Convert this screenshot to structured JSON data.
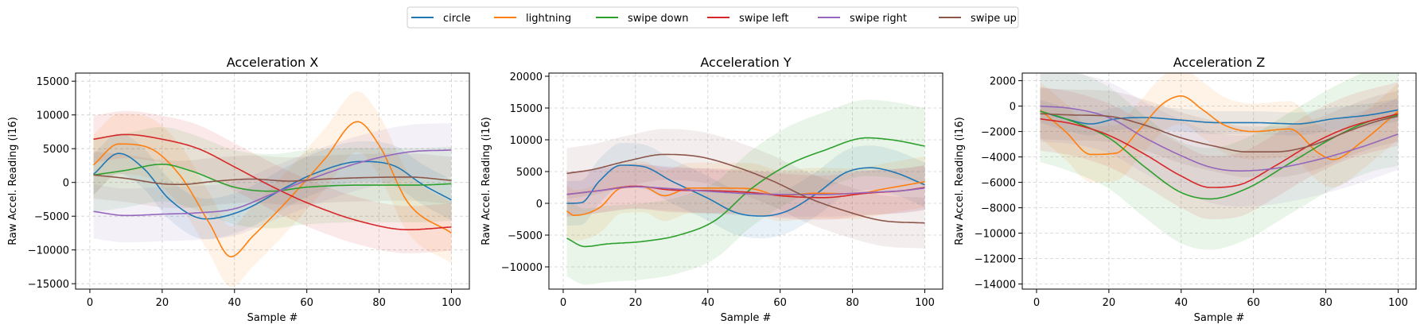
{
  "legend": [
    {
      "label": "circle",
      "color": "#1f77b4"
    },
    {
      "label": "lightning",
      "color": "#ff7f0e"
    },
    {
      "label": "swipe down",
      "color": "#2ca02c"
    },
    {
      "label": "swipe left",
      "color": "#d62728"
    },
    {
      "label": "swipe right",
      "color": "#9467bd"
    },
    {
      "label": "swipe up",
      "color": "#8c564b"
    }
  ],
  "chart_data": [
    {
      "type": "line",
      "title": "Acceleration X",
      "xlabel": "Sample #",
      "ylabel": "Raw Accel. Reading (i16)",
      "xlim": [
        -3.95,
        104.95
      ],
      "ylim": [
        -15800,
        16200
      ],
      "xticks": [
        0,
        20,
        40,
        60,
        80,
        100
      ],
      "yticks": [
        -15000,
        -10000,
        -5000,
        0,
        5000,
        10000,
        15000
      ],
      "grid": true,
      "series": [
        {
          "name": "circle",
          "band": 3000,
          "points": [
            [
              1,
              1200
            ],
            [
              8,
              4300
            ],
            [
              15,
              2000
            ],
            [
              22,
              -2500
            ],
            [
              32,
              -5400
            ],
            [
              42,
              -4200
            ],
            [
              55,
              -500
            ],
            [
              62,
              1300
            ],
            [
              75,
              3100
            ],
            [
              84,
              2500
            ],
            [
              92,
              -300
            ],
            [
              100,
              -2600
            ]
          ]
        },
        {
          "name": "lightning",
          "band": 4500,
          "points": [
            [
              1,
              2600
            ],
            [
              8,
              5700
            ],
            [
              16,
              5200
            ],
            [
              25,
              1000
            ],
            [
              33,
              -6000
            ],
            [
              39,
              -11000
            ],
            [
              45,
              -8000
            ],
            [
              55,
              -2500
            ],
            [
              65,
              3500
            ],
            [
              74,
              9000
            ],
            [
              80,
              5500
            ],
            [
              88,
              -3000
            ],
            [
              100,
              -7500
            ]
          ]
        },
        {
          "name": "swipe down",
          "band": 5500,
          "points": [
            [
              1,
              1100
            ],
            [
              10,
              1800
            ],
            [
              20,
              2700
            ],
            [
              28,
              1700
            ],
            [
              40,
              -700
            ],
            [
              50,
              -1300
            ],
            [
              60,
              -700
            ],
            [
              75,
              -400
            ],
            [
              90,
              -400
            ],
            [
              100,
              -200
            ]
          ]
        },
        {
          "name": "swipe left",
          "band": 3500,
          "points": [
            [
              1,
              6400
            ],
            [
              10,
              7100
            ],
            [
              20,
              6400
            ],
            [
              30,
              5000
            ],
            [
              40,
              2300
            ],
            [
              50,
              -500
            ],
            [
              60,
              -3000
            ],
            [
              75,
              -5800
            ],
            [
              88,
              -7000
            ],
            [
              100,
              -6600
            ]
          ]
        },
        {
          "name": "swipe right",
          "band": 4000,
          "points": [
            [
              1,
              -4300
            ],
            [
              10,
              -4900
            ],
            [
              20,
              -4700
            ],
            [
              30,
              -4500
            ],
            [
              40,
              -3900
            ],
            [
              50,
              -1800
            ],
            [
              60,
              300
            ],
            [
              75,
              3000
            ],
            [
              88,
              4500
            ],
            [
              100,
              4800
            ]
          ]
        },
        {
          "name": "swipe up",
          "band": 3500,
          "points": [
            [
              1,
              1100
            ],
            [
              10,
              600
            ],
            [
              20,
              -200
            ],
            [
              25,
              -300
            ],
            [
              35,
              200
            ],
            [
              45,
              500
            ],
            [
              55,
              200
            ],
            [
              65,
              500
            ],
            [
              75,
              700
            ],
            [
              88,
              800
            ],
            [
              100,
              300
            ]
          ]
        }
      ]
    },
    {
      "type": "line",
      "title": "Acceleration Y",
      "xlabel": "Sample #",
      "ylabel": "Raw Accel. Reading (i16)",
      "xlim": [
        -3.95,
        104.95
      ],
      "ylim": [
        -13500,
        20500
      ],
      "xticks": [
        0,
        20,
        40,
        60,
        80,
        100
      ],
      "yticks": [
        -10000,
        -5000,
        0,
        5000,
        10000,
        15000,
        20000
      ],
      "grid": true,
      "series": [
        {
          "name": "circle",
          "band": 3500,
          "points": [
            [
              1,
              0
            ],
            [
              5,
              100
            ],
            [
              10,
              3500
            ],
            [
              16,
              6000
            ],
            [
              22,
              5800
            ],
            [
              30,
              3500
            ],
            [
              40,
              800
            ],
            [
              48,
              -1500
            ],
            [
              55,
              -2000
            ],
            [
              62,
              -1200
            ],
            [
              70,
              1500
            ],
            [
              78,
              4800
            ],
            [
              85,
              5600
            ],
            [
              92,
              4800
            ],
            [
              100,
              2900
            ]
          ]
        },
        {
          "name": "lightning",
          "band": 4000,
          "points": [
            [
              1,
              -1200
            ],
            [
              3,
              -1900
            ],
            [
              10,
              -700
            ],
            [
              16,
              2400
            ],
            [
              22,
              2600
            ],
            [
              28,
              1200
            ],
            [
              35,
              2400
            ],
            [
              42,
              2400
            ],
            [
              52,
              2300
            ],
            [
              60,
              1200
            ],
            [
              70,
              1600
            ],
            [
              80,
              1500
            ],
            [
              90,
              2400
            ],
            [
              100,
              3400
            ]
          ]
        },
        {
          "name": "swipe down",
          "band": 6000,
          "points": [
            [
              1,
              -5500
            ],
            [
              6,
              -6800
            ],
            [
              12,
              -6400
            ],
            [
              22,
              -6000
            ],
            [
              32,
              -5000
            ],
            [
              42,
              -2700
            ],
            [
              52,
              2300
            ],
            [
              62,
              6000
            ],
            [
              72,
              8300
            ],
            [
              84,
              10300
            ],
            [
              92,
              9900
            ],
            [
              100,
              9000
            ]
          ]
        },
        {
          "name": "swipe left",
          "band": 3500,
          "points": [
            [
              1,
              1400
            ],
            [
              10,
              2000
            ],
            [
              20,
              2700
            ],
            [
              30,
              2100
            ],
            [
              40,
              2000
            ],
            [
              52,
              1700
            ],
            [
              62,
              1100
            ],
            [
              72,
              900
            ],
            [
              84,
              1600
            ],
            [
              94,
              2000
            ],
            [
              100,
              2500
            ]
          ]
        },
        {
          "name": "swipe right",
          "band": 3500,
          "points": [
            [
              1,
              1400
            ],
            [
              10,
              2000
            ],
            [
              20,
              2600
            ],
            [
              30,
              2300
            ],
            [
              40,
              1900
            ],
            [
              52,
              1500
            ],
            [
              62,
              1400
            ],
            [
              72,
              1400
            ],
            [
              84,
              1700
            ],
            [
              94,
              2000
            ],
            [
              100,
              2400
            ]
          ]
        },
        {
          "name": "swipe up",
          "band": 4000,
          "points": [
            [
              1,
              4700
            ],
            [
              8,
              5300
            ],
            [
              18,
              6700
            ],
            [
              28,
              7700
            ],
            [
              38,
              7300
            ],
            [
              48,
              5700
            ],
            [
              58,
              3500
            ],
            [
              68,
              800
            ],
            [
              78,
              -1200
            ],
            [
              88,
              -2700
            ],
            [
              100,
              -3100
            ]
          ]
        }
      ]
    },
    {
      "type": "line",
      "title": "Acceleration Z",
      "xlabel": "Sample #",
      "ylabel": "Raw Accel. Reading (i16)",
      "xlim": [
        -3.95,
        104.95
      ],
      "ylim": [
        -14400,
        2600
      ],
      "xticks": [
        0,
        20,
        40,
        60,
        80,
        100
      ],
      "yticks": [
        -14000,
        -12000,
        -10000,
        -8000,
        -6000,
        -4000,
        -2000,
        0,
        2000
      ],
      "grid": true,
      "series": [
        {
          "name": "circle",
          "band": 900,
          "points": [
            [
              1,
              -400
            ],
            [
              8,
              -1000
            ],
            [
              15,
              -1400
            ],
            [
              22,
              -1000
            ],
            [
              30,
              -900
            ],
            [
              40,
              -1100
            ],
            [
              50,
              -1300
            ],
            [
              60,
              -1300
            ],
            [
              72,
              -1400
            ],
            [
              82,
              -1000
            ],
            [
              92,
              -700
            ],
            [
              100,
              -300
            ]
          ]
        },
        {
          "name": "lightning",
          "band": 2200,
          "points": [
            [
              1,
              -300
            ],
            [
              8,
              -2000
            ],
            [
              15,
              -3800
            ],
            [
              22,
              -3700
            ],
            [
              28,
              -2000
            ],
            [
              35,
              200
            ],
            [
              40,
              800
            ],
            [
              46,
              -300
            ],
            [
              52,
              -1500
            ],
            [
              60,
              -2000
            ],
            [
              70,
              -1800
            ],
            [
              78,
              -3700
            ],
            [
              82,
              -4200
            ],
            [
              90,
              -2800
            ],
            [
              100,
              -400
            ]
          ]
        },
        {
          "name": "swipe down",
          "band": 4000,
          "points": [
            [
              1,
              -400
            ],
            [
              8,
              -1000
            ],
            [
              20,
              -2500
            ],
            [
              30,
              -4800
            ],
            [
              40,
              -6800
            ],
            [
              48,
              -7300
            ],
            [
              58,
              -6500
            ],
            [
              70,
              -4500
            ],
            [
              82,
              -2500
            ],
            [
              92,
              -1200
            ],
            [
              100,
              -700
            ]
          ]
        },
        {
          "name": "swipe left",
          "band": 2500,
          "points": [
            [
              1,
              -1000
            ],
            [
              10,
              -1400
            ],
            [
              20,
              -2300
            ],
            [
              30,
              -3800
            ],
            [
              40,
              -5500
            ],
            [
              48,
              -6400
            ],
            [
              56,
              -6200
            ],
            [
              66,
              -4700
            ],
            [
              76,
              -3000
            ],
            [
              86,
              -1700
            ],
            [
              100,
              -600
            ]
          ]
        },
        {
          "name": "swipe right",
          "band": 2800,
          "points": [
            [
              1,
              0
            ],
            [
              10,
              -200
            ],
            [
              20,
              -900
            ],
            [
              30,
              -2500
            ],
            [
              40,
              -3900
            ],
            [
              48,
              -4800
            ],
            [
              56,
              -5100
            ],
            [
              66,
              -4900
            ],
            [
              78,
              -4200
            ],
            [
              90,
              -3200
            ],
            [
              100,
              -2200
            ]
          ]
        },
        {
          "name": "swipe up",
          "band": 2000,
          "points": [
            [
              1,
              -600
            ],
            [
              10,
              -700
            ],
            [
              20,
              -800
            ],
            [
              30,
              -1500
            ],
            [
              40,
              -2500
            ],
            [
              50,
              -3200
            ],
            [
              58,
              -3600
            ],
            [
              66,
              -3600
            ],
            [
              76,
              -3100
            ],
            [
              86,
              -2000
            ],
            [
              94,
              -1200
            ],
            [
              100,
              -800
            ]
          ]
        }
      ]
    }
  ]
}
